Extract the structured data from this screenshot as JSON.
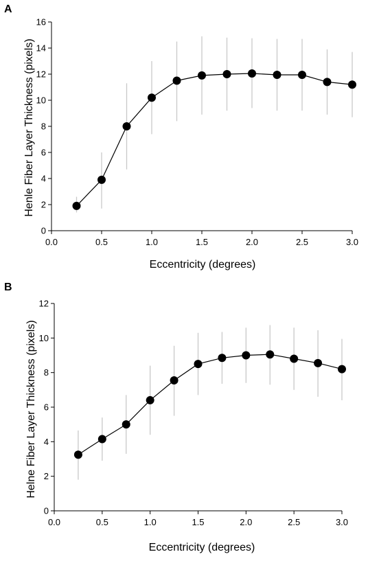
{
  "chart_data": [
    {
      "type": "line",
      "panel_label": "A",
      "xlabel": "Eccentricity (degrees)",
      "ylabel": "Henle Fiber Layer Thickness (pixels)",
      "xlim": [
        0.0,
        3.0
      ],
      "ylim": [
        0,
        16
      ],
      "xticks": [
        "0.0",
        "0.5",
        "1.0",
        "1.5",
        "2.0",
        "2.5",
        "3.0"
      ],
      "yticks": [
        "0",
        "2",
        "4",
        "6",
        "8",
        "10",
        "12",
        "14",
        "16"
      ],
      "grid": false,
      "series": [
        {
          "x": [
            0.25,
            0.5,
            0.75,
            1.0,
            1.25,
            1.5,
            1.75,
            2.0,
            2.25,
            2.5,
            2.75,
            3.0
          ],
          "y": [
            1.9,
            3.9,
            8.0,
            10.2,
            11.5,
            11.9,
            12.0,
            12.05,
            11.95,
            11.95,
            11.4,
            11.2
          ],
          "err_low": [
            1.4,
            1.7,
            4.7,
            7.4,
            8.4,
            8.9,
            9.2,
            9.4,
            9.2,
            9.2,
            8.9,
            8.7
          ],
          "err_high": [
            2.6,
            6.0,
            11.3,
            13.0,
            14.5,
            14.9,
            14.8,
            14.75,
            14.7,
            14.7,
            13.9,
            13.7
          ]
        }
      ]
    },
    {
      "type": "line",
      "panel_label": "B",
      "xlabel": "Eccentricity (degrees)",
      "ylabel": "Helne Fiber Layer Thickness (pixels)",
      "xlim": [
        0.0,
        3.0
      ],
      "ylim": [
        0,
        12
      ],
      "xticks": [
        "0.0",
        "0.5",
        "1.0",
        "1.5",
        "2.0",
        "2.5",
        "3.0"
      ],
      "yticks": [
        "0",
        "2",
        "4",
        "6",
        "8",
        "10",
        "12"
      ],
      "grid": false,
      "series": [
        {
          "x": [
            0.25,
            0.5,
            0.75,
            1.0,
            1.25,
            1.5,
            1.75,
            2.0,
            2.25,
            2.5,
            2.75,
            3.0
          ],
          "y": [
            3.25,
            4.15,
            5.0,
            6.4,
            7.55,
            8.5,
            8.85,
            9.0,
            9.05,
            8.8,
            8.55,
            8.2
          ],
          "err_low": [
            1.8,
            2.9,
            3.3,
            4.4,
            5.5,
            6.7,
            7.35,
            7.4,
            7.3,
            7.0,
            6.6,
            6.4
          ],
          "err_high": [
            4.65,
            5.4,
            6.7,
            8.4,
            9.55,
            10.3,
            10.35,
            10.6,
            10.75,
            10.6,
            10.45,
            9.95
          ]
        }
      ]
    }
  ]
}
